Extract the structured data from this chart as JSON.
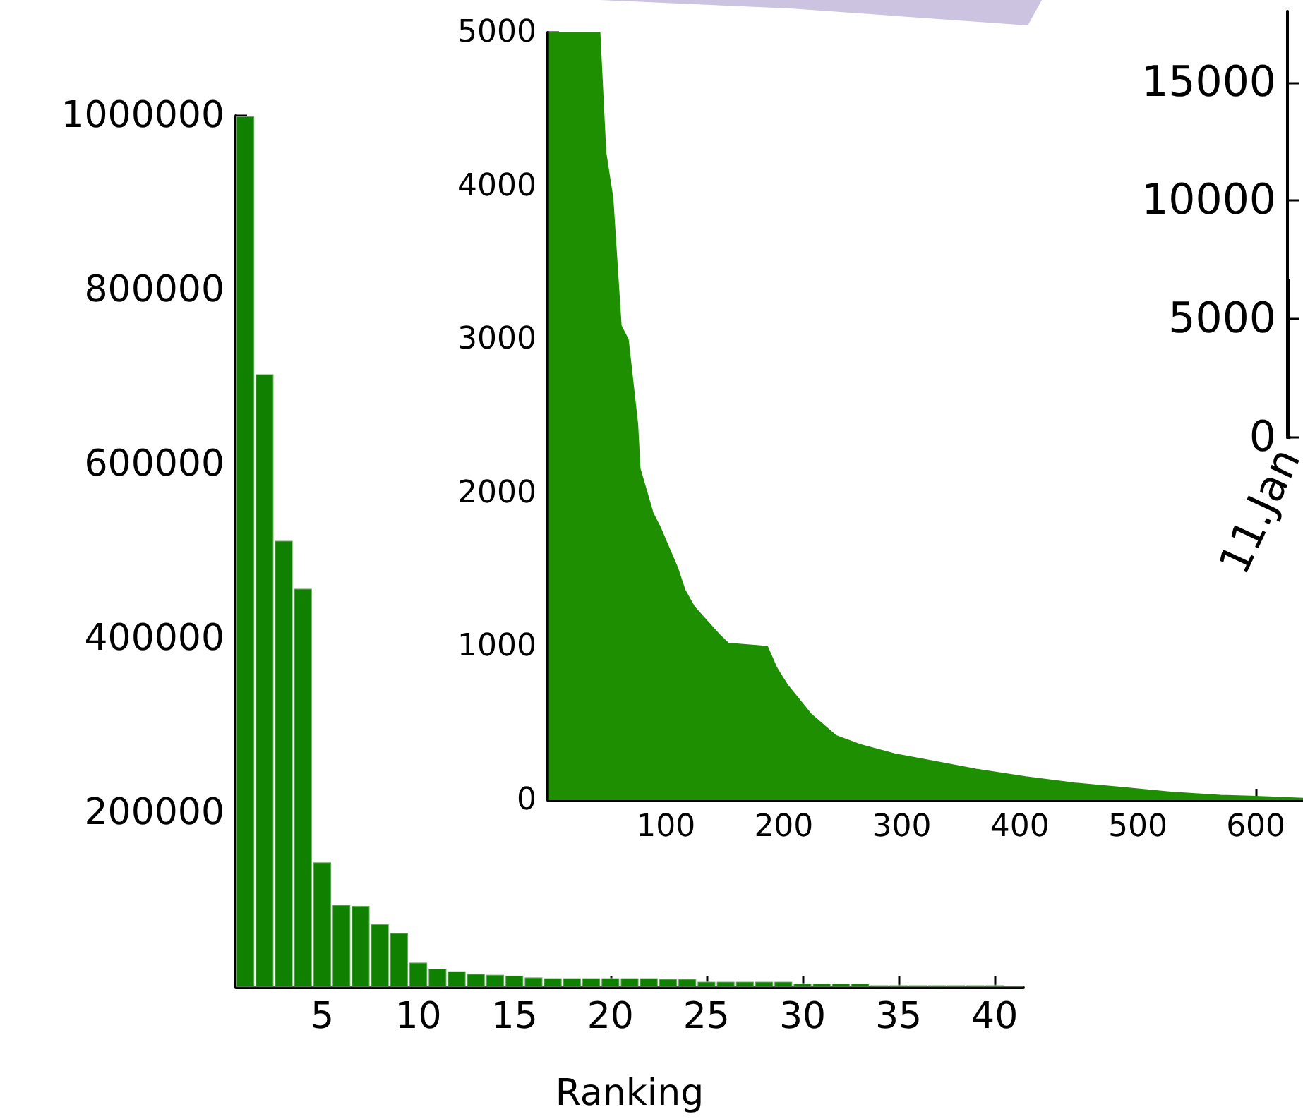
{
  "chart_data": [
    {
      "type": "bar",
      "xlabel": "Ranking",
      "color": "#0f8000",
      "x": [
        1,
        2,
        3,
        4,
        5,
        6,
        7,
        8,
        9,
        10,
        11,
        12,
        13,
        14,
        15,
        16,
        17,
        18,
        19,
        20,
        21,
        22,
        23,
        24,
        25,
        26,
        27,
        28,
        29,
        30,
        31,
        32,
        33,
        34,
        35,
        36,
        37,
        38,
        39,
        40,
        41
      ],
      "values": [
        1000000,
        704000,
        513000,
        458000,
        144000,
        95000,
        94000,
        73000,
        63000,
        29000,
        22000,
        19000,
        16000,
        15000,
        14000,
        12000,
        11000,
        11000,
        11000,
        11000,
        11000,
        11000,
        10000,
        10000,
        7000,
        7000,
        7000,
        7000,
        7000,
        5000,
        5000,
        5000,
        5000,
        3000,
        3000,
        3000,
        3000,
        3000,
        3000,
        3000,
        2000
      ],
      "xlim": [
        0.5,
        41.5
      ],
      "xticks": [
        5,
        10,
        15,
        20,
        25,
        30,
        35,
        40
      ],
      "ylim": [
        0,
        1000000
      ],
      "yticks": [
        200000,
        400000,
        600000,
        800000,
        1000000
      ],
      "grid": false
    },
    {
      "type": "area",
      "color": "#1e8f00",
      "x": [
        1,
        44,
        49,
        55,
        62,
        68,
        76,
        78,
        89,
        95,
        110,
        116,
        124,
        145,
        153,
        186,
        194,
        203,
        223,
        244,
        265,
        294,
        322,
        363,
        405,
        446,
        488,
        528,
        570,
        611,
        640
      ],
      "values": [
        5000,
        5000,
        4220,
        3920,
        3090,
        3000,
        2450,
        2160,
        1870,
        1780,
        1510,
        1370,
        1260,
        1080,
        1020,
        1000,
        860,
        750,
        560,
        420,
        360,
        300,
        260,
        200,
        150,
        110,
        80,
        50,
        30,
        20,
        10
      ],
      "xlim": [
        0,
        640
      ],
      "xticks": [
        100,
        200,
        300,
        400,
        500,
        600
      ],
      "ylim": [
        0,
        5000
      ],
      "yticks": [
        0,
        1000,
        2000,
        3000,
        4000,
        5000
      ],
      "grid": false
    },
    {
      "type": "bar",
      "color": "#000000",
      "categories": [
        "11.Jan"
      ],
      "values": [
        6700
      ],
      "ylim": [
        0,
        18000
      ],
      "yticks": [
        0,
        5000,
        10000,
        15000
      ],
      "grid": false
    }
  ]
}
